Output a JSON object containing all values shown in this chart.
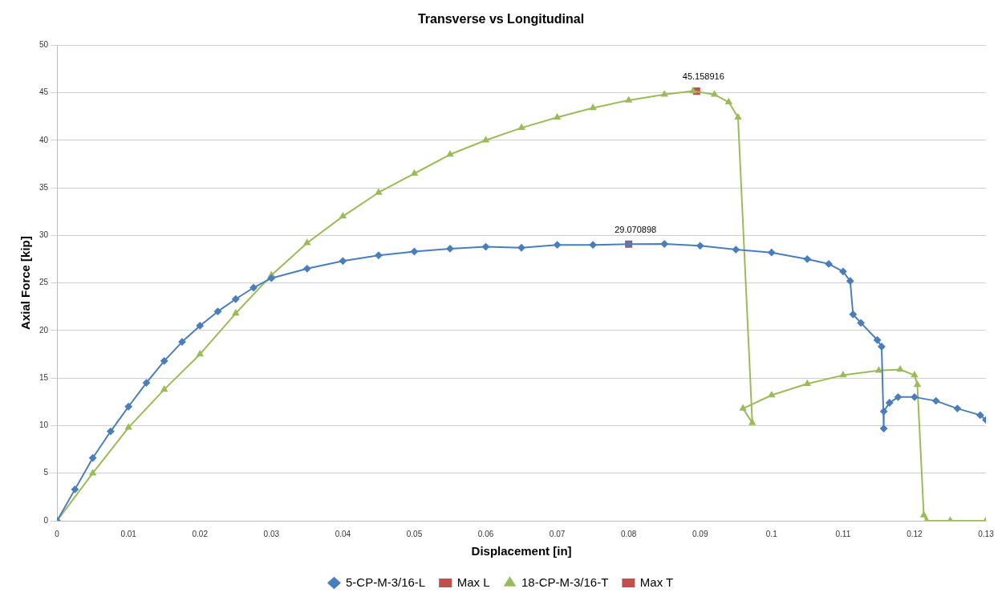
{
  "chart_data": {
    "type": "line",
    "title": "Transverse vs Longitudinal",
    "xlabel": "Displacement [in]",
    "ylabel": "Axial Force [kip]",
    "xlim": [
      0,
      0.13
    ],
    "xticks": [
      0,
      0.01,
      0.02,
      0.03,
      0.04,
      0.05,
      0.06,
      0.07,
      0.08,
      0.09,
      0.1,
      0.11,
      0.12,
      0.13
    ],
    "ylim": [
      0,
      50
    ],
    "yticks": [
      0,
      5,
      10,
      15,
      20,
      25,
      30,
      35,
      40,
      45,
      50
    ],
    "grid": "y",
    "legend": "bottom",
    "series": [
      {
        "name": "5-CP-M-3/16-L",
        "color": "#4a7ebb",
        "marker": "diamond",
        "x": [
          0,
          0.0025,
          0.005,
          0.0075,
          0.01,
          0.0125,
          0.015,
          0.0175,
          0.02,
          0.0225,
          0.025,
          0.0275,
          0.03,
          0.035,
          0.04,
          0.045,
          0.05,
          0.055,
          0.06,
          0.065,
          0.07,
          0.075,
          0.08,
          0.085,
          0.09,
          0.095,
          0.1,
          0.105,
          0.108,
          0.11,
          0.111,
          0.1114,
          0.1125,
          0.1148,
          0.1154,
          0.1157,
          0.1157,
          0.1165,
          0.1177,
          0.12,
          0.123,
          0.126,
          0.1292,
          0.13
        ],
        "values": [
          0,
          3.3,
          6.6,
          9.4,
          12,
          14.5,
          16.8,
          18.8,
          20.5,
          22,
          23.3,
          24.5,
          25.5,
          26.5,
          27.3,
          27.9,
          28.3,
          28.6,
          28.8,
          28.7,
          29,
          29,
          29.07,
          29.1,
          28.9,
          28.5,
          28.2,
          27.5,
          27,
          26.2,
          25.2,
          21.7,
          20.8,
          19,
          18.3,
          9.7,
          11.5,
          12.4,
          13,
          13,
          12.6,
          11.8,
          11.1,
          10.6
        ]
      },
      {
        "name": "Max L",
        "color": "#c0504d",
        "marker": "square",
        "x": [
          0.08
        ],
        "values": [
          29.070898
        ],
        "value_labels": [
          "29.070898"
        ]
      },
      {
        "name": "18-CP-M-3/16-T",
        "color": "#9bbb59",
        "marker": "triangle",
        "x": [
          0,
          0.005,
          0.01,
          0.015,
          0.02,
          0.025,
          0.03,
          0.035,
          0.04,
          0.045,
          0.05,
          0.055,
          0.06,
          0.065,
          0.07,
          0.075,
          0.08,
          0.085,
          0.089,
          0.092,
          0.094,
          0.0953,
          0.0973,
          0.096,
          0.1,
          0.105,
          0.11,
          0.115,
          0.118,
          0.12,
          0.1204,
          0.1213,
          0.1217,
          0.125,
          0.13
        ],
        "values": [
          0,
          5,
          9.8,
          13.8,
          17.5,
          21.8,
          25.8,
          29.2,
          32,
          34.5,
          36.5,
          38.5,
          40,
          41.3,
          42.4,
          43.4,
          44.2,
          44.8,
          45.16,
          44.8,
          44,
          42.4,
          10.3,
          11.8,
          13.2,
          14.4,
          15.3,
          15.8,
          15.9,
          15.3,
          14.3,
          0.6,
          0,
          0,
          0
        ]
      },
      {
        "name": "Max T",
        "color": "#c0504d",
        "marker": "square",
        "x": [
          0.0895
        ],
        "values": [
          45.158916
        ],
        "value_labels": [
          "45.158916"
        ]
      }
    ]
  }
}
